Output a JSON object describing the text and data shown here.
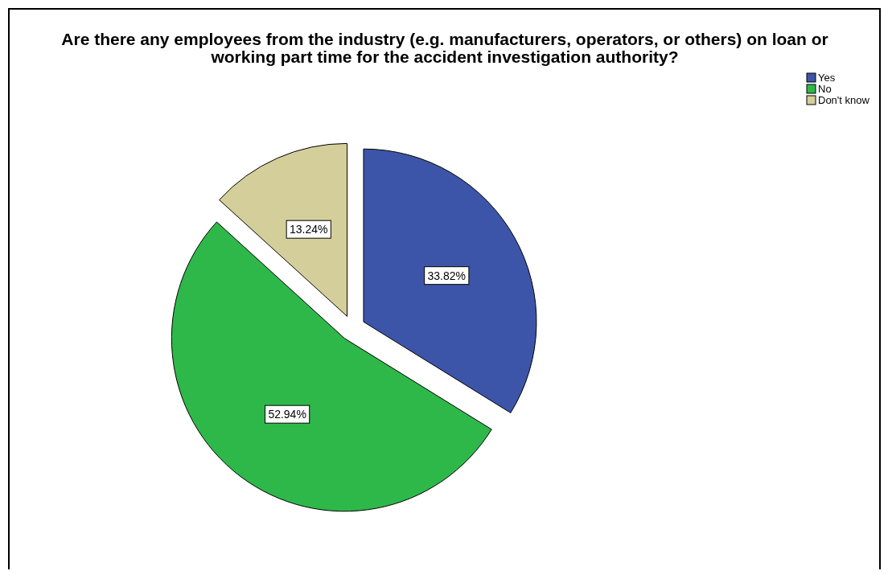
{
  "chart_data": {
    "type": "pie",
    "title": "Are there any employees from the industry (e.g. manufacturers, operators, or others) on loan or working part time for the accident investigation authority?",
    "categories": [
      "Yes",
      "No",
      "Don't know"
    ],
    "values": [
      33.82,
      52.94,
      13.24
    ],
    "colors": [
      "#3d55a8",
      "#2fb84a",
      "#d4cf9a"
    ],
    "value_labels": [
      "33.82%",
      "52.94%",
      "13.24%"
    ],
    "legend": "top right"
  }
}
